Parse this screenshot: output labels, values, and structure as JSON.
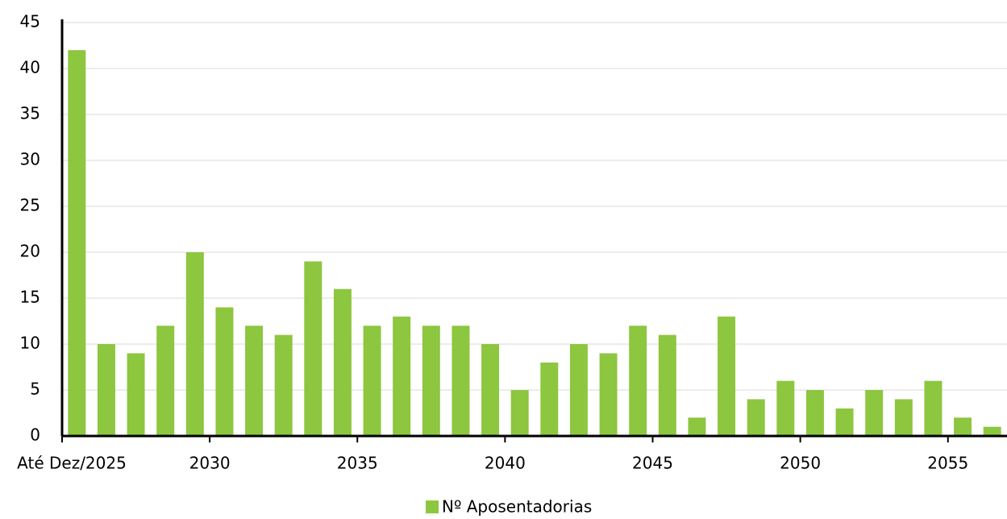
{
  "chart_data": {
    "type": "bar",
    "categories": [
      "Até Dez/2025",
      null,
      null,
      null,
      null,
      "2030",
      null,
      null,
      null,
      null,
      "2035",
      null,
      null,
      null,
      null,
      "2040",
      null,
      null,
      null,
      null,
      "2045",
      null,
      null,
      null,
      null,
      "2050",
      null,
      null,
      null,
      null,
      "2055",
      null
    ],
    "series": [
      {
        "name": "Nº Aposentadorias",
        "color": "#8dc63f",
        "values": [
          42,
          10,
          9,
          12,
          20,
          14,
          12,
          11,
          19,
          16,
          12,
          13,
          12,
          12,
          10,
          5,
          8,
          10,
          9,
          12,
          11,
          2,
          13,
          4,
          6,
          5,
          3,
          5,
          4,
          6,
          2,
          1
        ]
      }
    ],
    "ylim": [
      0,
      45
    ],
    "yticks": [
      0,
      5,
      10,
      15,
      20,
      25,
      30,
      35,
      40,
      45
    ],
    "grid": true,
    "legend": "bottom"
  }
}
